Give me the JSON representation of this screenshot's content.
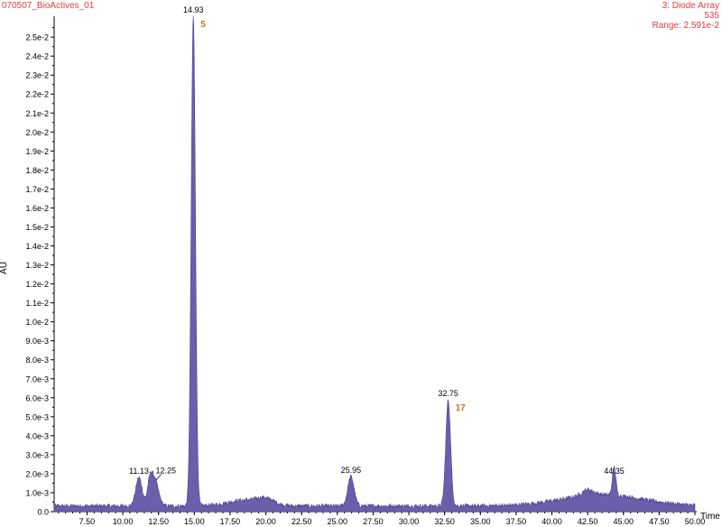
{
  "header": {
    "sample_name": "070507_BioActives_01",
    "detector": "3: Diode Array",
    "channel": "535",
    "range": "Range: 2.591e-2"
  },
  "colors": {
    "trace_fill": "#6a5faa",
    "trace_line": "#4f4596",
    "header_text": "#e23c3c",
    "peak_number": "#d66f12",
    "axis": "#000000"
  },
  "chart_data": {
    "type": "area",
    "xlabel": "Time",
    "ylabel": "AU",
    "xlim": [
      5.2,
      50.0
    ],
    "ylim": [
      0.0,
      0.02591
    ],
    "x_ticks": [
      7.5,
      10.0,
      12.5,
      15.0,
      17.5,
      20.0,
      22.5,
      25.0,
      27.5,
      30.0,
      32.5,
      35.0,
      37.5,
      40.0,
      42.5,
      45.0,
      47.5,
      50.0
    ],
    "x_tick_labels": [
      "7.50",
      "10.00",
      "12.50",
      "15.00",
      "17.50",
      "20.00",
      "22.50",
      "25.00",
      "27.50",
      "30.00",
      "32.50",
      "35.00",
      "37.50",
      "40.00",
      "42.50",
      "45.00",
      "47.50",
      "50.00"
    ],
    "y_ticks": [
      0.0,
      0.001,
      0.002,
      0.003,
      0.004,
      0.005,
      0.006,
      0.007,
      0.008,
      0.009,
      0.01,
      0.011,
      0.012,
      0.013,
      0.014,
      0.015,
      0.016,
      0.017,
      0.018,
      0.019,
      0.02,
      0.021,
      0.022,
      0.023,
      0.024,
      0.025
    ],
    "y_tick_labels": [
      "0.0",
      "1.0e-3",
      "2.0e-3",
      "3.0e-3",
      "4.0e-3",
      "5.0e-3",
      "6.0e-3",
      "7.0e-3",
      "8.0e-3",
      "9.0e-3",
      "1.0e-2",
      "1.1e-2",
      "1.2e-2",
      "1.3e-2",
      "1.4e-2",
      "1.5e-2",
      "1.6e-2",
      "1.7e-2",
      "1.8e-2",
      "1.9e-2",
      "2.0e-2",
      "2.1e-2",
      "2.2e-2",
      "2.3e-2",
      "2.4e-2",
      "2.5e-2"
    ],
    "baseline": 0.0003,
    "peaks": [
      {
        "time": 11.13,
        "height": 0.0015,
        "width": 0.22,
        "label": "11.13"
      },
      {
        "time": 11.9,
        "height": 0.0012,
        "width": 0.18,
        "label": ""
      },
      {
        "time": 12.25,
        "height": 0.0013,
        "width": 0.25,
        "label": "12.25"
      },
      {
        "time": 14.93,
        "height": 0.0258,
        "width": 0.15,
        "label": "14.93",
        "number": "5"
      },
      {
        "time": 25.95,
        "height": 0.00155,
        "width": 0.22,
        "label": "25.95"
      },
      {
        "time": 32.75,
        "height": 0.0056,
        "width": 0.17,
        "label": "32.75",
        "number": "17"
      },
      {
        "time": 44.35,
        "height": 0.0015,
        "width": 0.12,
        "label": "44.35"
      }
    ],
    "humps": [
      {
        "time": 18.5,
        "height": 0.0003,
        "width": 1.2
      },
      {
        "time": 20.0,
        "height": 0.0003,
        "width": 0.6
      },
      {
        "time": 43.5,
        "height": 0.0006,
        "width": 2.8
      },
      {
        "time": 42.5,
        "height": 0.0003,
        "width": 0.4
      }
    ]
  }
}
